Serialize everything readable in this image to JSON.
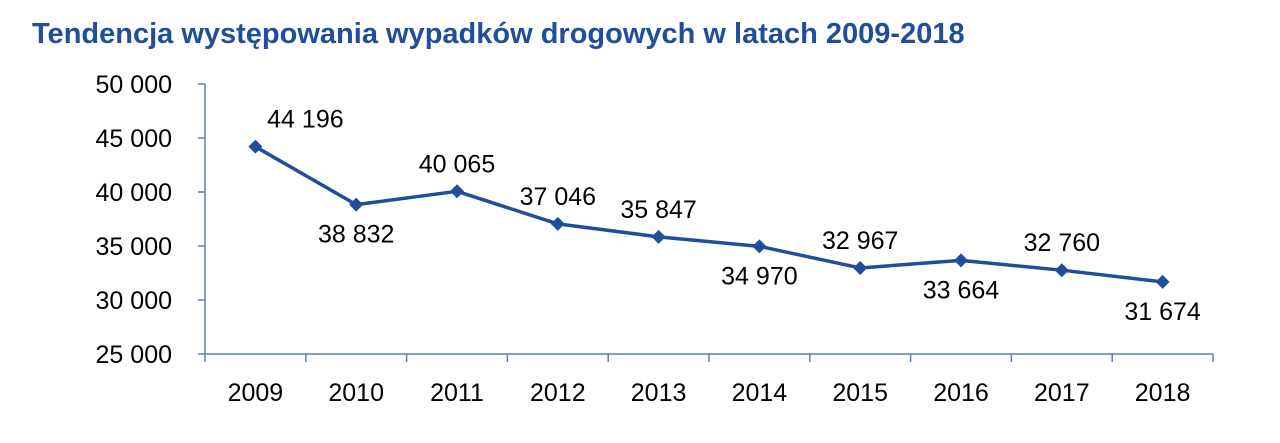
{
  "chart_data": {
    "type": "line",
    "title": "Tendencja występowania wypadków drogowych w latach 2009-2018",
    "xlabel": "",
    "ylabel": "",
    "categories": [
      "2009",
      "2010",
      "2011",
      "2012",
      "2013",
      "2014",
      "2015",
      "2016",
      "2017",
      "2018"
    ],
    "values": [
      44196,
      38832,
      40065,
      37046,
      35847,
      34970,
      32967,
      33664,
      32760,
      31674
    ],
    "data_labels": [
      "44 196",
      "38 832",
      "40 065",
      "37 046",
      "35 847",
      "34 970",
      "32 967",
      "33 664",
      "32 760",
      "31 674"
    ],
    "label_positions": [
      "above",
      "below",
      "above",
      "above",
      "above",
      "below",
      "above",
      "below",
      "above",
      "below"
    ],
    "ylim": [
      25000,
      50000
    ],
    "yticks": [
      25000,
      30000,
      35000,
      40000,
      45000,
      50000
    ],
    "ytick_labels": [
      "25 000",
      "30 000",
      "35 000",
      "40 000",
      "45 000",
      "50 000"
    ],
    "grid": false,
    "legend": "none",
    "marker": "diamond",
    "line_color": "#1f4e9a",
    "axis_color": "#5b7fb5",
    "title_color": "#1f4e9a"
  }
}
